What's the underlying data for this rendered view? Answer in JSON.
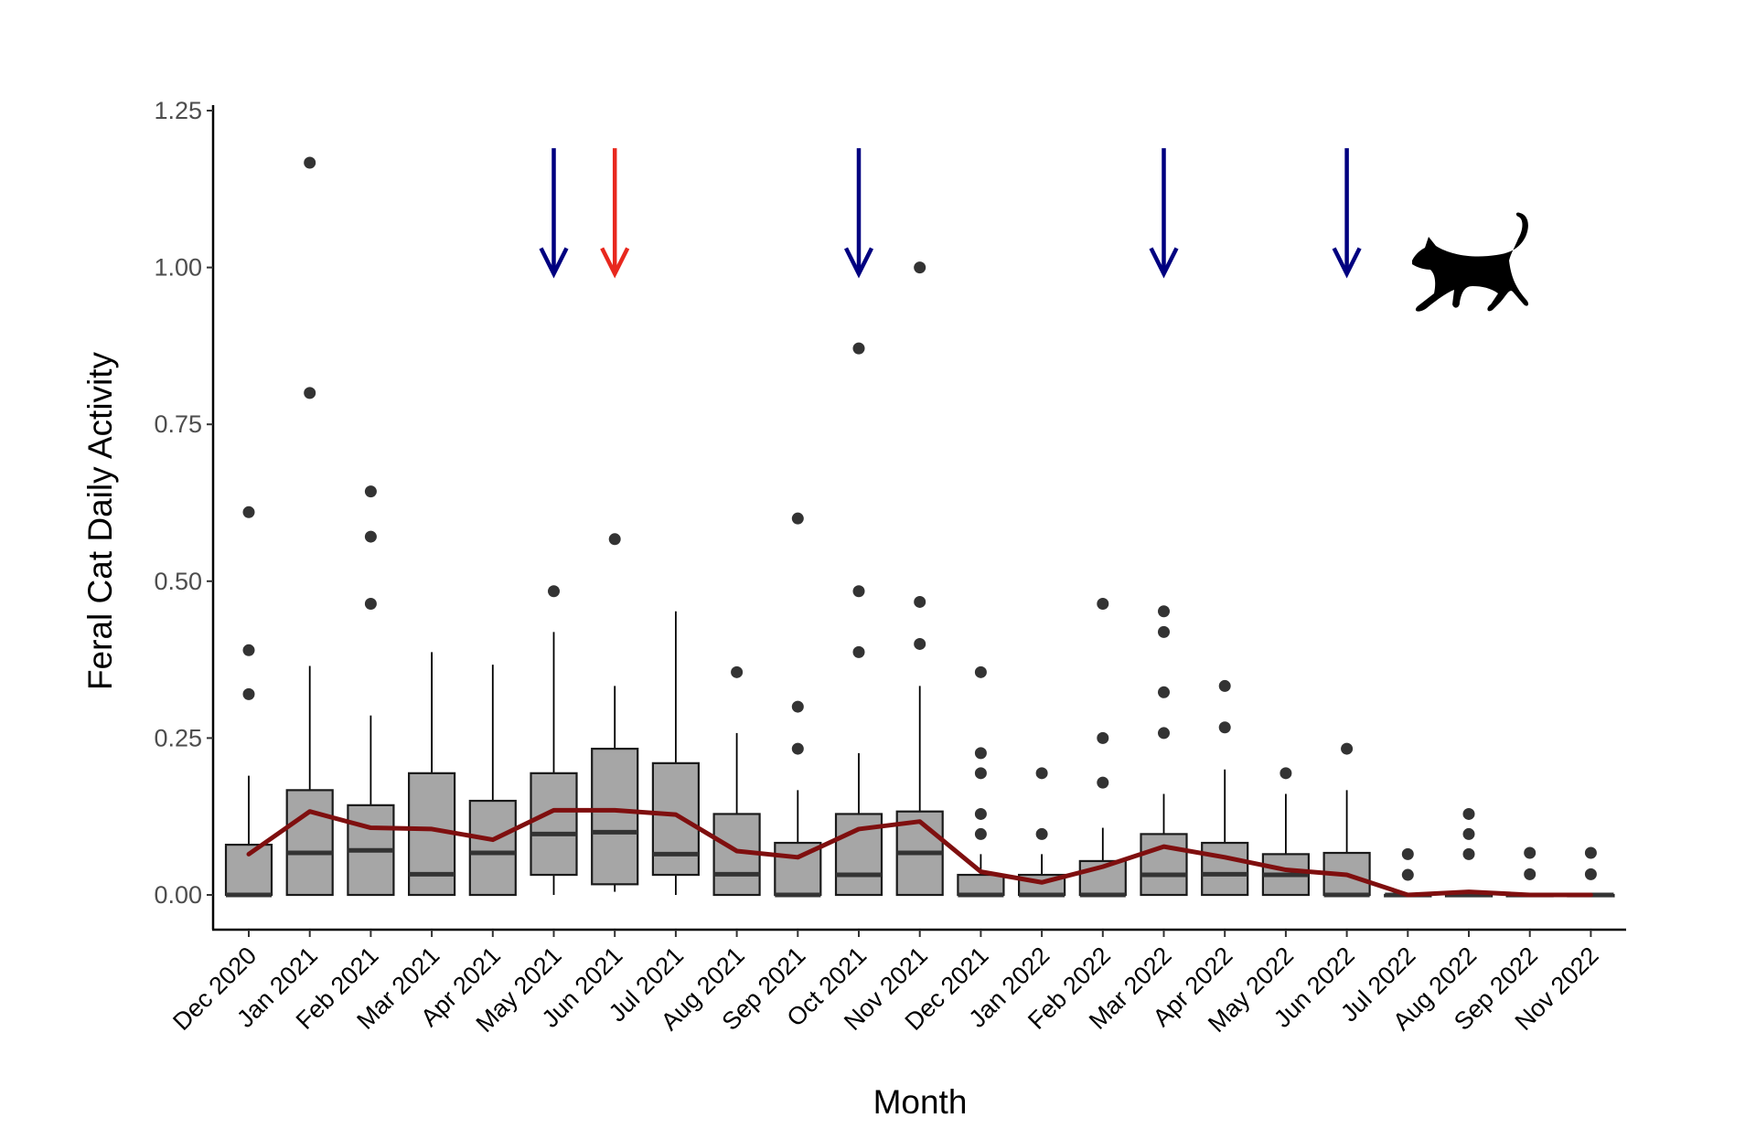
{
  "chart_data": {
    "type": "boxplot",
    "title": "",
    "xlabel": "Month",
    "ylabel": "Feral Cat Daily Activity",
    "ylim": [
      -0.05,
      1.25
    ],
    "yticks": [
      "0.00",
      "0.25",
      "0.50",
      "0.75",
      "1.00",
      "1.25"
    ],
    "ytick_values": [
      0,
      0.25,
      0.5,
      0.75,
      1.0,
      1.25
    ],
    "grid": false,
    "categories": [
      "Dec 2020",
      "Jan 2021",
      "Feb 2021",
      "Mar 2021",
      "Apr 2021",
      "May 2021",
      "Jun 2021",
      "Jul 2021",
      "Aug 2021",
      "Sep 2021",
      "Oct 2021",
      "Nov 2021",
      "Dec 2021",
      "Jan 2022",
      "Feb 2022",
      "Mar 2022",
      "Apr 2022",
      "May 2022",
      "Jun 2022",
      "Jul 2022",
      "Aug 2022",
      "Sep 2022",
      "Nov 2022"
    ],
    "boxes": [
      {
        "lower": 0,
        "q1": 0,
        "median": 0,
        "q3": 0.08,
        "upper": 0.19,
        "outliers": [
          0.32,
          0.39,
          0.61
        ]
      },
      {
        "lower": 0,
        "q1": 0,
        "median": 0.067,
        "q3": 0.167,
        "upper": 0.365,
        "outliers": [
          0.8,
          1.167
        ]
      },
      {
        "lower": 0,
        "q1": 0,
        "median": 0.071,
        "q3": 0.143,
        "upper": 0.286,
        "outliers": [
          0.464,
          0.571,
          0.643
        ]
      },
      {
        "lower": 0,
        "q1": 0,
        "median": 0.033,
        "q3": 0.194,
        "upper": 0.387,
        "outliers": []
      },
      {
        "lower": 0,
        "q1": 0,
        "median": 0.067,
        "q3": 0.15,
        "upper": 0.367,
        "outliers": []
      },
      {
        "lower": 0,
        "q1": 0.032,
        "median": 0.097,
        "q3": 0.194,
        "upper": 0.419,
        "outliers": [
          0.484
        ]
      },
      {
        "lower": 0.005,
        "q1": 0.017,
        "median": 0.1,
        "q3": 0.233,
        "upper": 0.333,
        "outliers": [
          0.567
        ]
      },
      {
        "lower": 0,
        "q1": 0.032,
        "median": 0.065,
        "q3": 0.21,
        "upper": 0.452,
        "outliers": []
      },
      {
        "lower": 0,
        "q1": 0,
        "median": 0.033,
        "q3": 0.129,
        "upper": 0.258,
        "outliers": [
          0.355
        ]
      },
      {
        "lower": 0,
        "q1": 0,
        "median": 0,
        "q3": 0.083,
        "upper": 0.167,
        "outliers": [
          0.233,
          0.3,
          0.6
        ]
      },
      {
        "lower": 0,
        "q1": 0,
        "median": 0.032,
        "q3": 0.129,
        "upper": 0.226,
        "outliers": [
          0.387,
          0.484,
          0.871
        ]
      },
      {
        "lower": 0,
        "q1": 0,
        "median": 0.067,
        "q3": 0.133,
        "upper": 0.333,
        "outliers": [
          0.4,
          0.467,
          1.0
        ]
      },
      {
        "lower": 0,
        "q1": 0,
        "median": 0,
        "q3": 0.032,
        "upper": 0.065,
        "outliers": [
          0.097,
          0.129,
          0.194,
          0.226,
          0.355
        ]
      },
      {
        "lower": 0,
        "q1": 0,
        "median": 0,
        "q3": 0.032,
        "upper": 0.065,
        "outliers": [
          0.097,
          0.194
        ]
      },
      {
        "lower": 0,
        "q1": 0,
        "median": 0,
        "q3": 0.054,
        "upper": 0.107,
        "outliers": [
          0.179,
          0.25,
          0.464
        ]
      },
      {
        "lower": 0,
        "q1": 0,
        "median": 0.032,
        "q3": 0.097,
        "upper": 0.161,
        "outliers": [
          0.258,
          0.323,
          0.419,
          0.452
        ]
      },
      {
        "lower": 0,
        "q1": 0,
        "median": 0.033,
        "q3": 0.083,
        "upper": 0.2,
        "outliers": [
          0.267,
          0.333
        ]
      },
      {
        "lower": 0,
        "q1": 0,
        "median": 0.032,
        "q3": 0.065,
        "upper": 0.161,
        "outliers": [
          0.194
        ]
      },
      {
        "lower": 0,
        "q1": 0,
        "median": 0,
        "q3": 0.067,
        "upper": 0.167,
        "outliers": [
          0.233
        ]
      },
      {
        "lower": 0,
        "q1": 0,
        "median": 0,
        "q3": 0,
        "upper": 0,
        "outliers": [
          0.032,
          0.065
        ]
      },
      {
        "lower": 0,
        "q1": 0,
        "median": 0,
        "q3": 0,
        "upper": 0,
        "outliers": [
          0.065,
          0.097,
          0.129
        ]
      },
      {
        "lower": 0,
        "q1": 0,
        "median": 0,
        "q3": 0,
        "upper": 0,
        "outliers": [
          0.033,
          0.067
        ]
      },
      {
        "lower": 0,
        "q1": 0,
        "median": 0,
        "q3": 0,
        "upper": 0,
        "outliers": [
          0.033,
          0.067
        ]
      }
    ],
    "trend_line": {
      "name": "Monthly mean",
      "color": "#7f0f0f",
      "values": [
        0.065,
        0.133,
        0.107,
        0.105,
        0.088,
        0.135,
        0.135,
        0.128,
        0.07,
        0.06,
        0.105,
        0.117,
        0.037,
        0.02,
        0.045,
        0.077,
        0.06,
        0.04,
        0.032,
        0.0,
        0.005,
        0.0,
        0.0
      ]
    },
    "annotations": {
      "arrows": [
        {
          "category": "May 2021",
          "color": "#000080"
        },
        {
          "category": "Jun 2021",
          "color": "#e8281e"
        },
        {
          "category": "Oct 2021",
          "color": "#000080"
        },
        {
          "category": "Mar 2022",
          "color": "#000080"
        },
        {
          "category": "Jun 2022",
          "color": "#000080"
        }
      ],
      "arrow_from": 1.19,
      "arrow_to": 0.99,
      "icon": "cat-silhouette-icon"
    },
    "colors": {
      "box_fill": "#a6a6a6",
      "box_stroke": "#1a1a1a",
      "median": "#333333",
      "outlier": "#333333"
    }
  }
}
